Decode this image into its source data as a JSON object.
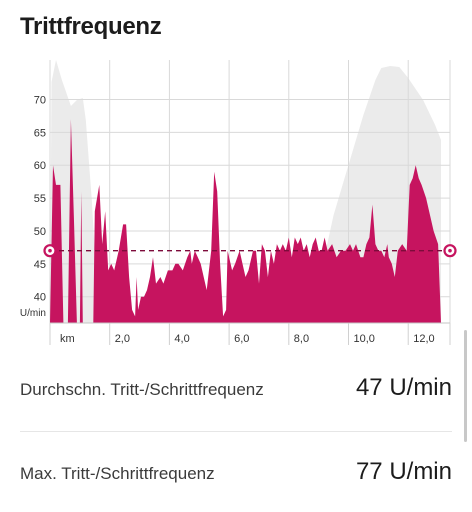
{
  "header": {
    "title": "Trittfrequenz"
  },
  "stats": [
    {
      "label": "Durchschn. Tritt-/Schrittfrequenz",
      "value": "47 U/min"
    },
    {
      "label": "Max. Tritt-/Schrittfrequenz",
      "value": "77 U/min"
    }
  ],
  "colors": {
    "series": "#c6145f",
    "elevation": "#ebebeb",
    "grid": "#d9d9d9",
    "average_line": "#7d0b3b"
  },
  "chart_data": {
    "type": "area",
    "title": "Trittfrequenz",
    "ylabel": "U/min",
    "xlabel": "km",
    "x_unit": "km",
    "xlim": [
      0,
      13.4
    ],
    "ylim": [
      36,
      76
    ],
    "y_ticks": [
      {
        "value": 70,
        "label": "70"
      },
      {
        "value": 65,
        "label": "65"
      },
      {
        "value": 60,
        "label": "60"
      },
      {
        "value": 55,
        "label": "55"
      },
      {
        "value": 50,
        "label": "50"
      },
      {
        "value": 45,
        "label": "45"
      },
      {
        "value": 40,
        "label": "40"
      }
    ],
    "x_ticks": [
      {
        "value": 2.0,
        "label": "2,0"
      },
      {
        "value": 4.0,
        "label": "4,0"
      },
      {
        "value": 6.0,
        "label": "6,0"
      },
      {
        "value": 8.0,
        "label": "8,0"
      },
      {
        "value": 10.0,
        "label": "10,0"
      },
      {
        "value": 12.0,
        "label": "12,0"
      }
    ],
    "average": 47,
    "grid": true,
    "series": [
      {
        "values": [
          [
            0.0,
            36
          ],
          [
            0.05,
            48
          ],
          [
            0.1,
            60
          ],
          [
            0.2,
            57
          ],
          [
            0.35,
            57
          ],
          [
            0.45,
            36
          ],
          [
            0.6,
            36
          ],
          [
            0.7,
            67
          ],
          [
            0.8,
            52
          ],
          [
            0.9,
            36
          ],
          [
            1.0,
            36
          ],
          [
            1.05,
            56
          ],
          [
            1.1,
            36
          ],
          [
            1.45,
            36
          ],
          [
            1.5,
            53
          ],
          [
            1.65,
            57
          ],
          [
            1.75,
            48
          ],
          [
            1.85,
            53
          ],
          [
            1.95,
            44
          ],
          [
            2.05,
            45
          ],
          [
            2.15,
            44
          ],
          [
            2.3,
            47
          ],
          [
            2.45,
            51
          ],
          [
            2.55,
            51
          ],
          [
            2.65,
            43
          ],
          [
            2.75,
            38
          ],
          [
            2.85,
            37
          ],
          [
            2.9,
            43
          ],
          [
            2.95,
            38
          ],
          [
            3.05,
            40
          ],
          [
            3.15,
            40
          ],
          [
            3.25,
            41
          ],
          [
            3.35,
            43
          ],
          [
            3.45,
            46
          ],
          [
            3.55,
            42
          ],
          [
            3.7,
            43
          ],
          [
            3.8,
            42
          ],
          [
            3.95,
            44
          ],
          [
            4.1,
            44
          ],
          [
            4.2,
            45
          ],
          [
            4.3,
            45
          ],
          [
            4.45,
            44
          ],
          [
            4.6,
            46
          ],
          [
            4.7,
            47
          ],
          [
            4.75,
            45
          ],
          [
            4.85,
            47
          ],
          [
            4.95,
            46
          ],
          [
            5.05,
            45
          ],
          [
            5.15,
            43
          ],
          [
            5.25,
            41
          ],
          [
            5.3,
            43
          ],
          [
            5.4,
            47
          ],
          [
            5.5,
            59
          ],
          [
            5.6,
            56
          ],
          [
            5.7,
            45
          ],
          [
            5.8,
            37
          ],
          [
            5.9,
            38
          ],
          [
            5.95,
            47
          ],
          [
            6.1,
            44
          ],
          [
            6.2,
            45
          ],
          [
            6.35,
            47
          ],
          [
            6.45,
            45
          ],
          [
            6.55,
            43
          ],
          [
            6.65,
            44
          ],
          [
            6.75,
            46
          ],
          [
            6.8,
            47
          ],
          [
            6.9,
            47
          ],
          [
            7.0,
            42
          ],
          [
            7.1,
            48
          ],
          [
            7.2,
            47
          ],
          [
            7.3,
            43
          ],
          [
            7.4,
            47
          ],
          [
            7.5,
            45
          ],
          [
            7.6,
            48
          ],
          [
            7.7,
            47
          ],
          [
            7.8,
            48
          ],
          [
            7.9,
            47
          ],
          [
            8.0,
            49
          ],
          [
            8.1,
            46
          ],
          [
            8.2,
            49
          ],
          [
            8.3,
            48
          ],
          [
            8.4,
            49
          ],
          [
            8.5,
            47
          ],
          [
            8.6,
            48
          ],
          [
            8.7,
            46
          ],
          [
            8.8,
            48
          ],
          [
            8.9,
            49
          ],
          [
            9.0,
            47
          ],
          [
            9.1,
            47
          ],
          [
            9.2,
            49
          ],
          [
            9.3,
            47
          ],
          [
            9.45,
            48
          ],
          [
            9.6,
            46
          ],
          [
            9.75,
            47
          ],
          [
            9.9,
            47
          ],
          [
            10.05,
            48
          ],
          [
            10.15,
            47
          ],
          [
            10.25,
            48
          ],
          [
            10.4,
            46
          ],
          [
            10.5,
            46
          ],
          [
            10.6,
            48
          ],
          [
            10.7,
            49
          ],
          [
            10.8,
            54
          ],
          [
            10.9,
            48
          ],
          [
            11.0,
            47
          ],
          [
            11.1,
            47
          ],
          [
            11.2,
            46
          ],
          [
            11.3,
            48
          ],
          [
            11.35,
            46
          ],
          [
            11.45,
            45
          ],
          [
            11.55,
            43
          ],
          [
            11.65,
            47
          ],
          [
            11.8,
            48
          ],
          [
            11.95,
            47
          ],
          [
            12.05,
            57
          ],
          [
            12.15,
            58
          ],
          [
            12.25,
            60
          ],
          [
            12.35,
            58
          ],
          [
            12.45,
            57
          ],
          [
            12.6,
            55
          ],
          [
            12.75,
            52
          ],
          [
            12.85,
            50
          ],
          [
            13.0,
            48
          ],
          [
            13.1,
            36
          ]
        ]
      }
    ]
  }
}
